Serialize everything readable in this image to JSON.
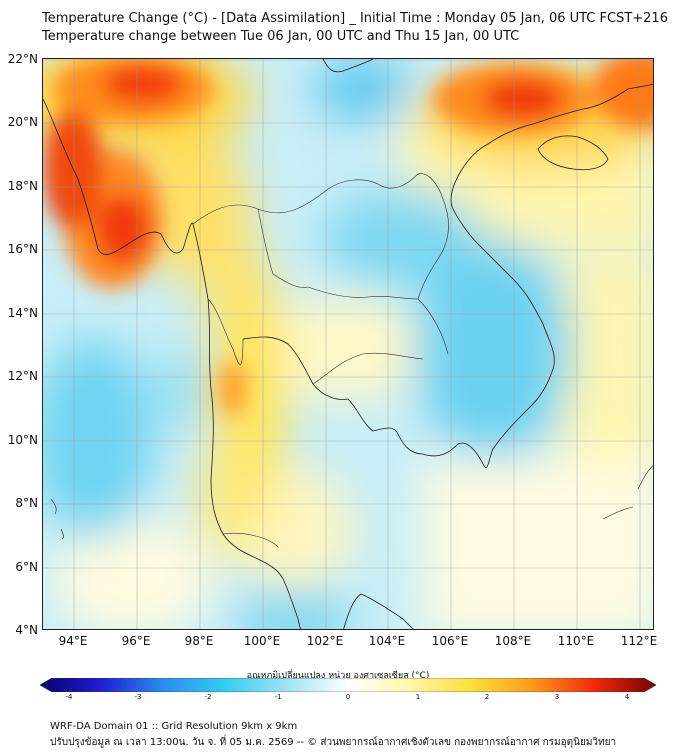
{
  "title": {
    "line1": "Temperature Change (°C) - [Data Assimilation] _ Initial Time : Monday 05 Jan, 06 UTC FCST+216",
    "line2": "Temperature change between Tue 06 Jan, 00 UTC and Thu 15 Jan, 00 UTC"
  },
  "axes": {
    "lat_ticks": [
      "22°N",
      "20°N",
      "18°N",
      "16°N",
      "14°N",
      "12°N",
      "10°N",
      "8°N",
      "6°N",
      "4°N"
    ],
    "lon_ticks": [
      "94°E",
      "96°E",
      "98°E",
      "100°E",
      "102°E",
      "104°E",
      "106°E",
      "108°E",
      "110°E",
      "112°E"
    ],
    "lat_range": [
      4,
      22.2
    ],
    "lon_range": [
      93,
      112.5
    ]
  },
  "colorbar": {
    "label": "อุณหภูมิเปลี่ยนแปลง หน่วย องศาเซลเซียส (°C)",
    "ticks": [
      "-4",
      "-3",
      "-2",
      "-1",
      "0",
      "1",
      "2",
      "3",
      "4"
    ],
    "range": [
      -4,
      4
    ],
    "colors": [
      "#08006e",
      "#1f1fd6",
      "#2a8cf0",
      "#33cdf2",
      "#9fe4f4",
      "#ffffff",
      "#fff7a8",
      "#ffe03a",
      "#ff9a1a",
      "#f02a0a",
      "#7a0000"
    ]
  },
  "footer": {
    "line1": "WRF-DA Domain 01 :: Grid Resolution 9km x 9km",
    "line2": "ปรับปรุงข้อมูล ณ เวลา 13:00น. วัน จ. ที่ 05 ม.ค. 2569 -- © ส่วนพยากรณ์อากาศเชิงตัวเลข กองพยากรณ์อากาศ กรมอุตุนิยมวิทยา"
  }
}
